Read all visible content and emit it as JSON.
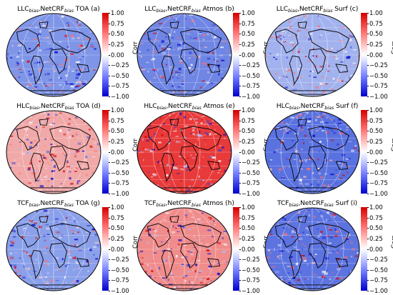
{
  "colorbar": {
    "label": "Corr",
    "ticks": [
      "1.00",
      "0.75",
      "0.50",
      "0.25",
      "0.00",
      "−0.25",
      "−0.50",
      "−0.75",
      "−1.00"
    ],
    "colors": {
      "high": "#d40000",
      "mid": "#ffffff",
      "low": "#0000cc"
    }
  },
  "panels": [
    {
      "var": "LLC",
      "bias": "bias",
      "sep": ",",
      "target": "NetCRF",
      "region": "TOA",
      "letter": "(a)",
      "tint": "#7f95e8"
    },
    {
      "var": "LLC",
      "bias": "bias",
      "sep": ",",
      "target": "NetCRF",
      "region": "Atmos",
      "letter": "(b)",
      "tint": "#6f86e4"
    },
    {
      "var": "LLC",
      "bias": "bias",
      "sep": ",",
      "target": "NetCRF",
      "region": "Surf",
      "letter": "(c)",
      "tint": "#a2b2ee"
    },
    {
      "var": "HLC",
      "bias": "bias",
      "sep": ",",
      "target": "NetCRF",
      "region": "TOA",
      "letter": "(d)",
      "tint": "#f0a8a8"
    },
    {
      "var": "HLC",
      "bias": "bias",
      "sep": ",",
      "target": "NetCRF",
      "region": "Atmos",
      "letter": "(e)",
      "tint": "#e83a3a"
    },
    {
      "var": "HLC",
      "bias": "bias",
      "sep": ",",
      "target": "NetCRF",
      "region": "Surf",
      "letter": "(f)",
      "tint": "#5a72df"
    },
    {
      "var": "TCF",
      "bias": "bias",
      "sep": ",",
      "target": "NetCRF",
      "region": "TOA",
      "letter": "(g)",
      "tint": "#8aa0ea"
    },
    {
      "var": "TCF",
      "bias": "bias",
      "sep": ",",
      "target": "NetCRF",
      "region": "Atmos",
      "letter": "(h)",
      "tint": "#f08c8c"
    },
    {
      "var": "TCF",
      "bias": "bias",
      "sep": ",",
      "target": "NetCRF",
      "region": "Surf",
      "letter": "(i)",
      "tint": "#5d74e0"
    }
  ]
}
